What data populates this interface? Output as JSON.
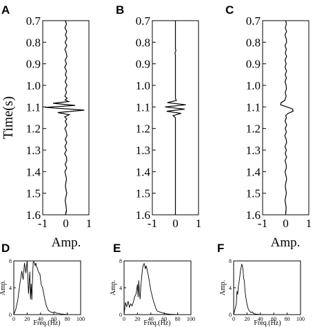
{
  "colors": {
    "line": "#000000",
    "axis": "#000000",
    "background": "#ffffff"
  },
  "chart_data": [
    {
      "panel": "A",
      "type": "line",
      "ylabel": "Time(s)",
      "xlabel": "Amp.",
      "ylim": [
        0.7,
        1.6
      ],
      "xlim": [
        -1,
        1
      ],
      "y_inverted": true,
      "yticks": [
        "0.7",
        "0.8",
        "0.9",
        "1.0",
        "1.1",
        "1.2",
        "1.3",
        "1.4",
        "1.5",
        "1.6"
      ],
      "xticks": [
        "-1",
        "0",
        "1"
      ],
      "series": [
        {
          "x": [
            -0.02,
            0.03,
            -0.04,
            0.04,
            -0.02,
            0.05,
            -0.03,
            0.04,
            -0.04,
            0.02,
            0.05,
            -0.03,
            0.03,
            -0.05,
            0.03,
            -0.02,
            0.04,
            -0.03,
            0.05,
            -0.02,
            0.03,
            -0.04,
            0.06,
            -0.03,
            0.12,
            -0.55,
            0.4,
            -0.9,
            0.8,
            -0.35,
            0.15,
            -0.05,
            0.04,
            -0.03,
            0.05,
            -0.04,
            0.02,
            0.05,
            -0.03,
            0.04,
            -0.04,
            0.03,
            -0.05,
            0.03,
            0.04,
            -0.03,
            0.04,
            -0.04,
            0.03,
            -0.02,
            0.04,
            -0.03,
            0.02,
            0.03,
            -0.02
          ],
          "y": [
            0.7,
            0.716,
            0.733,
            0.75,
            0.766,
            0.783,
            0.8,
            0.816,
            0.833,
            0.85,
            0.866,
            0.883,
            0.9,
            0.916,
            0.933,
            0.95,
            0.966,
            0.983,
            1.0,
            1.016,
            1.033,
            1.05,
            1.06,
            1.068,
            1.075,
            1.083,
            1.093,
            1.102,
            1.115,
            1.126,
            1.136,
            1.146,
            1.156,
            1.166,
            1.183,
            1.2,
            1.216,
            1.233,
            1.25,
            1.266,
            1.283,
            1.3,
            1.316,
            1.333,
            1.35,
            1.366,
            1.383,
            1.4,
            1.433,
            1.466,
            1.5,
            1.533,
            1.566,
            1.583,
            1.6
          ]
        }
      ]
    },
    {
      "panel": "B",
      "type": "line",
      "ylabel": "",
      "xlabel": "",
      "ylim": [
        0.7,
        1.6
      ],
      "xlim": [
        -1,
        1
      ],
      "y_inverted": true,
      "yticks": [
        "0.7",
        "0.8",
        "0.9",
        "1.0",
        "1.1",
        "1.2",
        "1.3",
        "1.4",
        "1.5",
        "1.6"
      ],
      "xticks": [
        "-1",
        "0",
        "1"
      ],
      "series": [
        {
          "x": [
            0,
            0,
            0,
            0,
            0.02,
            -0.02,
            0,
            0,
            0,
            0,
            0,
            0,
            0,
            0.04,
            -0.35,
            0.45,
            -0.45,
            0.4,
            -0.38,
            0.25,
            -0.1,
            0,
            0,
            0,
            0,
            0,
            0,
            0,
            0,
            0,
            0
          ],
          "y": [
            0.7,
            0.75,
            0.8,
            0.83,
            0.84,
            0.85,
            0.86,
            0.9,
            0.95,
            1.0,
            1.02,
            1.04,
            1.06,
            1.07,
            1.08,
            1.09,
            1.1,
            1.11,
            1.12,
            1.13,
            1.14,
            1.15,
            1.2,
            1.25,
            1.3,
            1.35,
            1.4,
            1.45,
            1.5,
            1.55,
            1.6
          ]
        }
      ]
    },
    {
      "panel": "C",
      "type": "line",
      "ylabel": "",
      "xlabel": "Amp.",
      "ylim": [
        0.7,
        1.6
      ],
      "xlim": [
        -1,
        1
      ],
      "y_inverted": true,
      "yticks": [
        "0.7",
        "0.8",
        "0.9",
        "1.0",
        "1.1",
        "1.2",
        "1.3",
        "1.4",
        "1.5",
        "1.6"
      ],
      "xticks": [
        "-1",
        "0",
        "1"
      ],
      "series": [
        {
          "x": [
            0,
            0.03,
            -0.02,
            0.04,
            -0.03,
            0.02,
            0.04,
            -0.03,
            0.03,
            -0.02,
            0.04,
            -0.03,
            0.02,
            -0.03,
            0.04,
            -0.02,
            0.03,
            -0.03,
            0.02,
            0.03,
            -0.02,
            0.02,
            -0.04,
            -0.2,
            -0.22,
            0.05,
            0.3,
            0.32,
            0.1,
            0,
            0.03,
            -0.03,
            0.04,
            -0.02,
            0.03,
            -0.04,
            0.02,
            0.04,
            -0.03,
            0.03,
            -0.02,
            0.04,
            -0.03,
            0.02,
            0.03,
            -0.03,
            0.04,
            -0.02,
            0.03,
            -0.03,
            0.02,
            0
          ],
          "y": [
            0.7,
            0.716,
            0.733,
            0.75,
            0.766,
            0.783,
            0.8,
            0.816,
            0.833,
            0.85,
            0.866,
            0.883,
            0.9,
            0.916,
            0.933,
            0.95,
            0.966,
            0.983,
            1.0,
            1.016,
            1.033,
            1.05,
            1.07,
            1.08,
            1.09,
            1.1,
            1.11,
            1.12,
            1.13,
            1.14,
            1.15,
            1.166,
            1.183,
            1.2,
            1.216,
            1.233,
            1.25,
            1.266,
            1.283,
            1.3,
            1.316,
            1.333,
            1.35,
            1.366,
            1.383,
            1.4,
            1.433,
            1.466,
            1.5,
            1.533,
            1.566,
            1.6
          ]
        }
      ]
    },
    {
      "panel": "D",
      "type": "line",
      "ylabel": "Amp.",
      "xlabel": "Freq.(Hz)",
      "xlim": [
        0,
        100
      ],
      "ylim": [
        0,
        8
      ],
      "xticks": [
        "0",
        "20",
        "40",
        "60",
        "80",
        "100"
      ],
      "yticks": [
        "0",
        "4",
        "8"
      ],
      "series": [
        {
          "x": [
            0,
            3,
            6,
            9,
            12,
            14,
            16,
            18,
            20,
            22,
            24,
            25,
            26,
            27,
            28,
            29,
            30,
            31,
            32,
            33,
            34,
            35,
            37,
            39,
            41,
            43,
            45,
            47,
            49,
            52,
            55,
            58,
            61,
            64,
            67,
            70,
            75,
            80,
            90,
            100
          ],
          "y": [
            0,
            0.8,
            2.2,
            4.5,
            6.5,
            5.2,
            7.7,
            6.2,
            8,
            3.1,
            6.4,
            2.3,
            4.6,
            2.2,
            5.1,
            7.8,
            7.9,
            7.6,
            7.3,
            7.7,
            7.1,
            7,
            6.3,
            6.1,
            4.5,
            4,
            3,
            2,
            1.2,
            0.6,
            0.4,
            0.3,
            0.4,
            0.2,
            0.2,
            0.1,
            0.05,
            0.02,
            0,
            0
          ]
        }
      ]
    },
    {
      "panel": "E",
      "type": "line",
      "ylabel": "Amp.",
      "xlabel": "Freq.(Hz)",
      "xlim": [
        0,
        100
      ],
      "ylim": [
        0,
        8
      ],
      "xticks": [
        "0",
        "20",
        "40",
        "60",
        "80",
        "100"
      ],
      "yticks": [
        "0",
        "4",
        "8"
      ],
      "series": [
        {
          "x": [
            0,
            2,
            4,
            6,
            8,
            10,
            12,
            14,
            16,
            18,
            20,
            21,
            22,
            23,
            24,
            25,
            26,
            27,
            28,
            29,
            30,
            31,
            32,
            33,
            34,
            35,
            36,
            38,
            40,
            42,
            44,
            46,
            48,
            50,
            53,
            56,
            60,
            65,
            70,
            80,
            90,
            100
          ],
          "y": [
            0,
            1.8,
            1.2,
            2,
            1.1,
            1.6,
            1.3,
            1.9,
            2.7,
            3.1,
            4.5,
            2.6,
            5.1,
            3.2,
            2.3,
            4.1,
            5.2,
            6.3,
            7.1,
            7.4,
            7.6,
            7.2,
            6.8,
            7.3,
            6.9,
            6.4,
            6,
            4.8,
            3.6,
            2.8,
            2,
            1.4,
            0.8,
            0.5,
            0.4,
            0.3,
            0.2,
            0.1,
            0.05,
            0,
            0,
            0
          ]
        }
      ]
    },
    {
      "panel": "F",
      "type": "line",
      "ylabel": "Amp.",
      "xlabel": "Freq.(Hz)",
      "xlim": [
        0,
        100
      ],
      "ylim": [
        0,
        8
      ],
      "xticks": [
        "0",
        "20",
        "40",
        "60",
        "80",
        "100"
      ],
      "yticks": [
        "0",
        "4",
        "8"
      ],
      "series": [
        {
          "x": [
            0,
            2,
            4,
            5,
            6,
            7,
            8,
            9,
            10,
            11,
            12,
            13,
            14,
            15,
            16,
            17,
            18,
            20,
            22,
            24,
            26,
            28,
            30,
            35,
            40,
            50,
            60,
            80,
            100
          ],
          "y": [
            0,
            0.8,
            1.6,
            3.5,
            3,
            4.2,
            4.8,
            5.5,
            6.4,
            6.9,
            7.5,
            7.3,
            6.6,
            5.4,
            5,
            3.5,
            2.7,
            1.5,
            0.8,
            0.5,
            0.3,
            0.4,
            0.15,
            0.05,
            0.02,
            0,
            0,
            0,
            0
          ]
        }
      ]
    }
  ]
}
